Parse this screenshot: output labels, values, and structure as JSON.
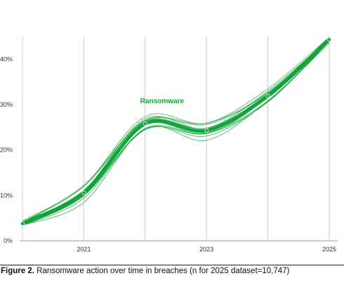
{
  "chart_data": {
    "type": "line",
    "series": [
      {
        "name": "Ransomware",
        "x": [
          2020,
          2021,
          2022,
          2023,
          2024,
          2025
        ],
        "values": [
          3.8,
          10.6,
          25.8,
          24.3,
          31.9,
          44.3
        ]
      }
    ],
    "x_ticks": [
      "2021",
      "2023",
      "2025"
    ],
    "y_ticks": [
      "0%",
      "10%",
      "20%",
      "30%",
      "40%"
    ],
    "xlim": [
      2020,
      2025
    ],
    "ylim": [
      0,
      45
    ],
    "grid": "vertical",
    "colors": {
      "series": "#12a33a",
      "grid": "#cccccc",
      "axis": "#999999"
    }
  },
  "caption": {
    "label": "Figure 2.",
    "text": "Ransomware action over time in breaches (n for 2025 dataset=10,747)"
  }
}
